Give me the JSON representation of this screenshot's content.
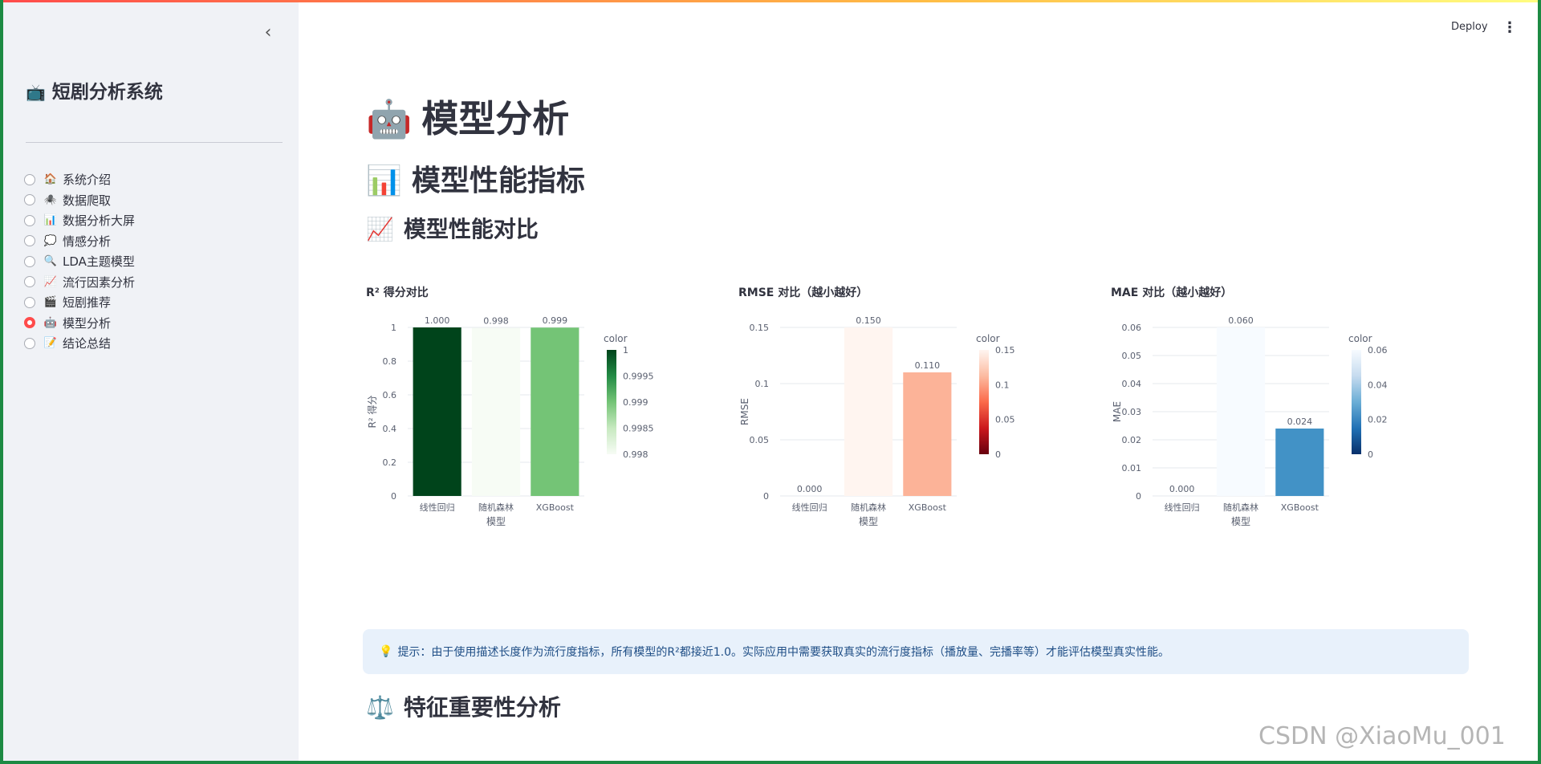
{
  "sidebar": {
    "collapse_icon": "chevron-left-icon",
    "title_emoji": "📺",
    "title": "短剧分析系统",
    "items": [
      {
        "emoji": "🏠",
        "label": "系统介绍",
        "selected": false
      },
      {
        "emoji": "🕷️",
        "label": "数据爬取",
        "selected": false
      },
      {
        "emoji": "📊",
        "label": "数据分析大屏",
        "selected": false
      },
      {
        "emoji": "💭",
        "label": "情感分析",
        "selected": false
      },
      {
        "emoji": "🔍",
        "label": "LDA主题模型",
        "selected": false
      },
      {
        "emoji": "📈",
        "label": "流行因素分析",
        "selected": false
      },
      {
        "emoji": "🎬",
        "label": "短剧推荐",
        "selected": false
      },
      {
        "emoji": "🤖",
        "label": "模型分析",
        "selected": true
      },
      {
        "emoji": "📝",
        "label": "结论总结",
        "selected": false
      }
    ]
  },
  "header": {
    "deploy_label": "Deploy",
    "menu_icon": "kebab-menu-icon"
  },
  "main": {
    "title_emoji": "🤖",
    "title": "模型分析",
    "section_emoji": "📊",
    "section_title": "模型性能指标",
    "subsection_emoji": "📈",
    "subsection_title": "模型性能对比",
    "hint_emoji": "💡",
    "hint": "提示：由于使用描述长度作为流行度指标，所有模型的R²都接近1.0。实际应用中需要获取真实的流行度指标（播放量、完播率等）才能评估模型真实性能。",
    "next_section_emoji": "⚖️",
    "next_section_title": "特征重要性分析"
  },
  "chart_data": [
    {
      "type": "bar",
      "title": "R² 得分对比",
      "categories": [
        "线性回归",
        "随机森林",
        "XGBoost"
      ],
      "values": [
        1.0,
        0.998,
        0.999
      ],
      "value_labels": [
        "1.000",
        "0.998",
        "0.999"
      ],
      "xlabel": "模型",
      "ylabel": "R² 得分",
      "ylim": [
        0,
        1
      ],
      "yticks": [
        0,
        0.2,
        0.4,
        0.6,
        0.8,
        1
      ],
      "ytick_labels": [
        "0",
        "0.2",
        "0.4",
        "0.6",
        "0.8",
        "1"
      ],
      "colorscale": "Greens",
      "colorbar": {
        "title": "color",
        "range": [
          0.998,
          1
        ],
        "ticks": [
          0.998,
          0.9985,
          0.999,
          0.9995,
          1
        ],
        "tick_labels": [
          "0.998",
          "0.9985",
          "0.999",
          "0.9995",
          "1"
        ]
      },
      "bar_colors": [
        "#00441b",
        "#f7fcf5",
        "#74c476"
      ],
      "colorbar_gradient": [
        "#f7fcf5",
        "#c7e9c0",
        "#74c476",
        "#238b45",
        "#00441b"
      ],
      "grid": true,
      "legend": "right"
    },
    {
      "type": "bar",
      "title": "RMSE 对比（越小越好）",
      "categories": [
        "线性回归",
        "随机森林",
        "XGBoost"
      ],
      "values": [
        0.0,
        0.15,
        0.11
      ],
      "value_labels": [
        "0.000",
        "0.150",
        "0.110"
      ],
      "xlabel": "模型",
      "ylabel": "RMSE",
      "ylim": [
        0,
        0.15
      ],
      "yticks": [
        0,
        0.05,
        0.1,
        0.15
      ],
      "ytick_labels": [
        "0",
        "0.05",
        "0.1",
        "0.15"
      ],
      "colorscale": "Reds_r",
      "colorbar": {
        "title": "color",
        "range": [
          0,
          0.15
        ],
        "ticks": [
          0,
          0.05,
          0.1,
          0.15
        ],
        "tick_labels": [
          "0",
          "0.05",
          "0.1",
          "0.15"
        ]
      },
      "bar_colors": [
        "#67000d",
        "#fff5f0",
        "#fcb398"
      ],
      "colorbar_gradient": [
        "#67000d",
        "#cb181d",
        "#fb6a4a",
        "#fcbba1",
        "#fff5f0"
      ],
      "grid": true,
      "legend": "right"
    },
    {
      "type": "bar",
      "title": "MAE 对比（越小越好）",
      "categories": [
        "线性回归",
        "随机森林",
        "XGBoost"
      ],
      "values": [
        0.0,
        0.06,
        0.024
      ],
      "value_labels": [
        "0.000",
        "0.060",
        "0.024"
      ],
      "xlabel": "模型",
      "ylabel": "MAE",
      "ylim": [
        0,
        0.06
      ],
      "yticks": [
        0,
        0.01,
        0.02,
        0.03,
        0.04,
        0.05,
        0.06
      ],
      "ytick_labels": [
        "0",
        "0.01",
        "0.02",
        "0.03",
        "0.04",
        "0.05",
        "0.06"
      ],
      "colorscale": "Blues_r",
      "colorbar": {
        "title": "color",
        "range": [
          0,
          0.06
        ],
        "ticks": [
          0,
          0.02,
          0.04,
          0.06
        ],
        "tick_labels": [
          "0",
          "0.02",
          "0.04",
          "0.06"
        ]
      },
      "bar_colors": [
        "#08306b",
        "#f7fbff",
        "#4292c6"
      ],
      "colorbar_gradient": [
        "#08306b",
        "#2171b5",
        "#6baed6",
        "#c6dbef",
        "#f7fbff"
      ],
      "grid": true,
      "legend": "right"
    }
  ],
  "watermark": "CSDN @XiaoMu_001"
}
